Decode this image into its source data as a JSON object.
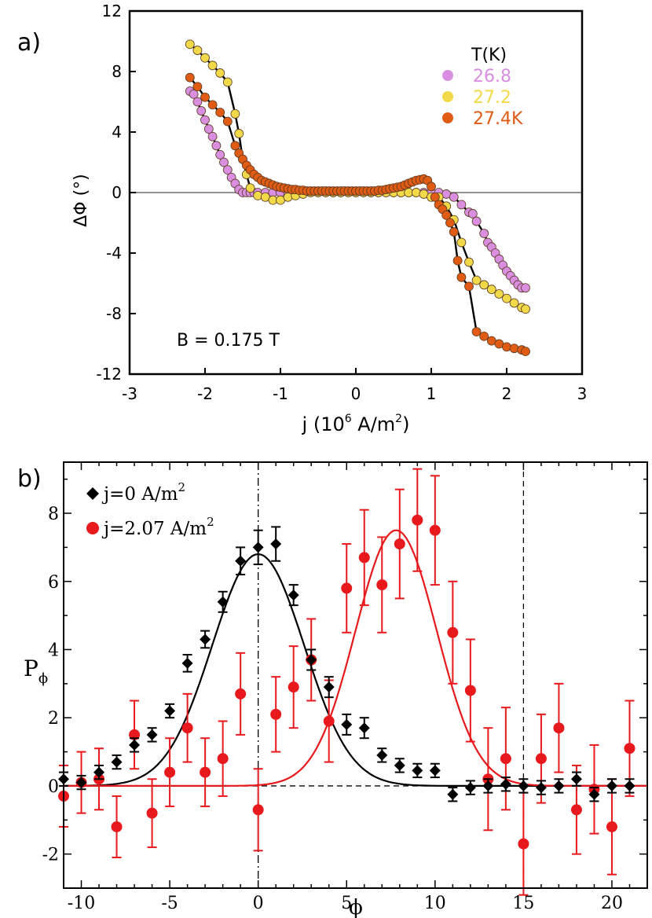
{
  "chart_data": [
    {
      "panel": "a)",
      "type": "scatter",
      "xlabel": "j (10",
      "xlabel_exp": "6",
      "xlabel_tail": " A/m",
      "xlabel_tail_exp": "2",
      "xlabel_close": ")",
      "ylabel": "ΔΦ (°)",
      "xlim": [
        -3,
        3
      ],
      "ylim": [
        -12,
        12
      ],
      "xticks": [
        -3,
        -2,
        -1,
        0,
        1,
        2,
        3
      ],
      "yticks": [
        -12,
        -8,
        -4,
        0,
        4,
        8,
        12
      ],
      "annotation": "B = 0.175 T",
      "legend_title": "T(K)",
      "series": [
        {
          "name": "26.8",
          "color": "#d98ee0",
          "x": [
            -2.2,
            -2.15,
            -2.1,
            -2.05,
            -2.0,
            -1.95,
            -1.9,
            -1.85,
            -1.8,
            -1.75,
            -1.7,
            -1.65,
            -1.6,
            -1.55,
            -1.5,
            -1.45,
            -1.4,
            -1.35,
            -1.3,
            -1.2,
            -1.1,
            -1.0,
            -0.9,
            -0.8,
            -0.7,
            -0.6,
            -0.5,
            -0.4,
            -0.3,
            -0.2,
            -0.1,
            0.0,
            0.1,
            0.2,
            0.3,
            0.4,
            0.5,
            0.6,
            0.7,
            0.8,
            0.9,
            1.0,
            1.1,
            1.2,
            1.3,
            1.4,
            1.5,
            1.55,
            1.6,
            1.7,
            1.75,
            1.8,
            1.85,
            1.9,
            1.95,
            2.0,
            2.05,
            2.1,
            2.15,
            2.2,
            2.25
          ],
          "y": [
            6.7,
            6.5,
            6.0,
            5.4,
            4.8,
            4.2,
            3.7,
            3.1,
            2.5,
            2.0,
            1.5,
            1.0,
            0.6,
            0.2,
            0.0,
            0.0,
            0.0,
            0.0,
            0.0,
            0.0,
            0.0,
            0.0,
            0.0,
            0.0,
            0.0,
            0.0,
            0.0,
            0.0,
            0.0,
            0.0,
            0.0,
            0.0,
            0.0,
            0.0,
            0.0,
            0.0,
            0.0,
            0.0,
            0.0,
            0.0,
            0.0,
            0.0,
            0.0,
            -0.1,
            -0.3,
            -0.8,
            -1.3,
            -1.4,
            -1.9,
            -2.7,
            -3.3,
            -3.6,
            -4.0,
            -4.4,
            -4.8,
            -5.2,
            -5.5,
            -5.8,
            -6.1,
            -6.3,
            -6.3
          ]
        },
        {
          "name": "27.2",
          "color": "#f2d94a",
          "x": [
            -2.2,
            -2.1,
            -2.0,
            -1.9,
            -1.8,
            -1.7,
            -1.6,
            -1.55,
            -1.5,
            -1.45,
            -1.4,
            -1.3,
            -1.2,
            -1.1,
            -1.0,
            -0.9,
            -0.8,
            -0.7,
            -0.6,
            -0.5,
            -0.4,
            -0.3,
            -0.2,
            -0.1,
            0.0,
            0.1,
            0.2,
            0.3,
            0.4,
            0.5,
            0.6,
            0.7,
            0.8,
            0.9,
            1.0,
            1.1,
            1.2,
            1.3,
            1.4,
            1.5,
            1.6,
            1.7,
            1.8,
            1.9,
            2.0,
            2.1,
            2.2,
            2.25
          ],
          "y": [
            9.8,
            9.4,
            8.9,
            8.4,
            7.9,
            7.3,
            5.2,
            3.9,
            2.2,
            1.2,
            0.3,
            -0.2,
            -0.3,
            -0.5,
            -0.5,
            -0.3,
            -0.2,
            -0.1,
            0.0,
            0.0,
            0.0,
            0.0,
            0.0,
            0.0,
            0.0,
            0.0,
            0.0,
            0.0,
            0.0,
            0.0,
            0.0,
            0.0,
            0.0,
            -0.1,
            -0.3,
            -0.3,
            -0.9,
            -1.8,
            -3.3,
            -4.6,
            -5.8,
            -6.1,
            -6.4,
            -6.7,
            -7.0,
            -7.3,
            -7.6,
            -7.7
          ]
        },
        {
          "name": "27.4K",
          "color": "#e05c14",
          "x": [
            -2.2,
            -2.1,
            -2.0,
            -1.9,
            -1.8,
            -1.7,
            -1.6,
            -1.55,
            -1.5,
            -1.45,
            -1.4,
            -1.35,
            -1.3,
            -1.25,
            -1.2,
            -1.15,
            -1.1,
            -1.05,
            -1.0,
            -0.95,
            -0.9,
            -0.85,
            -0.8,
            -0.75,
            -0.7,
            -0.65,
            -0.6,
            -0.55,
            -0.5,
            -0.45,
            -0.4,
            -0.35,
            -0.3,
            -0.25,
            -0.2,
            -0.15,
            -0.1,
            -0.05,
            0.0,
            0.05,
            0.1,
            0.15,
            0.2,
            0.25,
            0.3,
            0.35,
            0.4,
            0.45,
            0.5,
            0.55,
            0.6,
            0.65,
            0.7,
            0.75,
            0.8,
            0.85,
            0.9,
            0.95,
            1.0,
            1.05,
            1.1,
            1.15,
            1.2,
            1.25,
            1.3,
            1.35,
            1.4,
            1.5,
            1.6,
            1.7,
            1.8,
            1.9,
            2.0,
            2.1,
            2.2,
            2.25
          ],
          "y": [
            7.6,
            7.0,
            6.3,
            5.8,
            5.3,
            4.7,
            3.1,
            2.6,
            2.2,
            1.8,
            1.5,
            1.2,
            1.0,
            0.8,
            0.7,
            0.6,
            0.5,
            0.4,
            0.35,
            0.3,
            0.25,
            0.2,
            0.2,
            0.15,
            0.15,
            0.1,
            0.1,
            0.1,
            0.1,
            0.1,
            0.1,
            0.1,
            0.1,
            0.1,
            0.1,
            0.1,
            0.1,
            0.1,
            0.1,
            0.1,
            0.1,
            0.1,
            0.1,
            0.1,
            0.15,
            0.15,
            0.2,
            0.25,
            0.3,
            0.35,
            0.4,
            0.5,
            0.6,
            0.7,
            0.8,
            0.85,
            0.9,
            0.8,
            0.4,
            -0.3,
            -0.8,
            -1.1,
            -1.5,
            -2.0,
            -2.6,
            -4.5,
            -5.6,
            -6.2,
            -9.2,
            -9.5,
            -9.8,
            -10.0,
            -10.2,
            -10.3,
            -10.4,
            -10.5
          ]
        }
      ]
    },
    {
      "panel": "b)",
      "type": "scatter",
      "xlabel": "ϕ",
      "ylabel": "P",
      "ylabel_sub": "ϕ",
      "xlim": [
        -11,
        22
      ],
      "ylim": [
        -3,
        9.5
      ],
      "xticks": [
        -10,
        -5,
        0,
        5,
        10,
        15,
        20
      ],
      "yticks": [
        -2,
        0,
        2,
        4,
        6,
        8
      ],
      "vlines": [
        0,
        15
      ],
      "hline": 0,
      "series": [
        {
          "name": "j=0 A/m",
          "name_exp": "2",
          "marker": "diamond",
          "color": "#000000",
          "x": [
            -11,
            -10,
            -9,
            -8,
            -7,
            -6,
            -5,
            -4,
            -3,
            -2,
            -1,
            0,
            1,
            2,
            3,
            4,
            5,
            6,
            7,
            8,
            9,
            10,
            11,
            12,
            13,
            14,
            15,
            16,
            17,
            18,
            19,
            20,
            21
          ],
          "y": [
            0.2,
            0.1,
            0.4,
            0.7,
            1.2,
            1.5,
            2.2,
            3.6,
            4.3,
            5.4,
            6.6,
            7.0,
            7.1,
            5.6,
            3.7,
            2.9,
            1.8,
            1.7,
            0.9,
            0.6,
            0.45,
            0.45,
            -0.25,
            -0.05,
            0.0,
            0.05,
            0.0,
            -0.05,
            0.0,
            0.2,
            -0.25,
            0.0,
            0.0
          ],
          "err": [
            0.2,
            0.2,
            0.2,
            0.2,
            0.2,
            0.2,
            0.2,
            0.25,
            0.25,
            0.3,
            0.4,
            0.5,
            0.5,
            0.3,
            0.3,
            0.3,
            0.3,
            0.3,
            0.2,
            0.2,
            0.2,
            0.2,
            0.2,
            0.2,
            0.2,
            0.2,
            0.2,
            0.2,
            0.2,
            0.2,
            0.2,
            0.2,
            0.2
          ],
          "fit": {
            "type": "gaussian",
            "amplitude": 6.8,
            "center": 0.0,
            "sigma": 2.6
          }
        },
        {
          "name": "j=2.07 A/m",
          "name_exp": "2",
          "marker": "circle",
          "color": "#e8191c",
          "x": [
            -11,
            -10,
            -9,
            -8,
            -7,
            -6,
            -5,
            -4,
            -3,
            -2,
            -1,
            0,
            1,
            2,
            3,
            4,
            5,
            6,
            7,
            8,
            9,
            10,
            11,
            12,
            13,
            14,
            15,
            16,
            17,
            18,
            19,
            20,
            21
          ],
          "y": [
            -0.3,
            0.1,
            0.2,
            -1.2,
            1.5,
            -0.8,
            0.4,
            1.7,
            0.4,
            0.8,
            2.7,
            -0.7,
            2.1,
            2.9,
            3.7,
            1.9,
            5.8,
            6.7,
            5.9,
            7.1,
            7.8,
            7.5,
            4.5,
            2.8,
            0.2,
            0.8,
            -1.7,
            0.8,
            1.7,
            -0.7,
            -0.1,
            -1.2,
            1.1
          ],
          "err": [
            0.9,
            0.9,
            0.9,
            0.9,
            1.0,
            1.0,
            1.0,
            1.0,
            1.0,
            1.1,
            1.2,
            1.2,
            1.1,
            1.2,
            1.2,
            1.2,
            1.3,
            1.4,
            1.4,
            1.6,
            1.5,
            1.6,
            1.5,
            1.5,
            1.5,
            1.5,
            1.5,
            1.3,
            1.3,
            1.3,
            1.3,
            1.4,
            1.4
          ],
          "fit": {
            "type": "gaussian",
            "amplitude": 7.5,
            "center": 7.8,
            "sigma": 2.3
          }
        }
      ]
    }
  ]
}
